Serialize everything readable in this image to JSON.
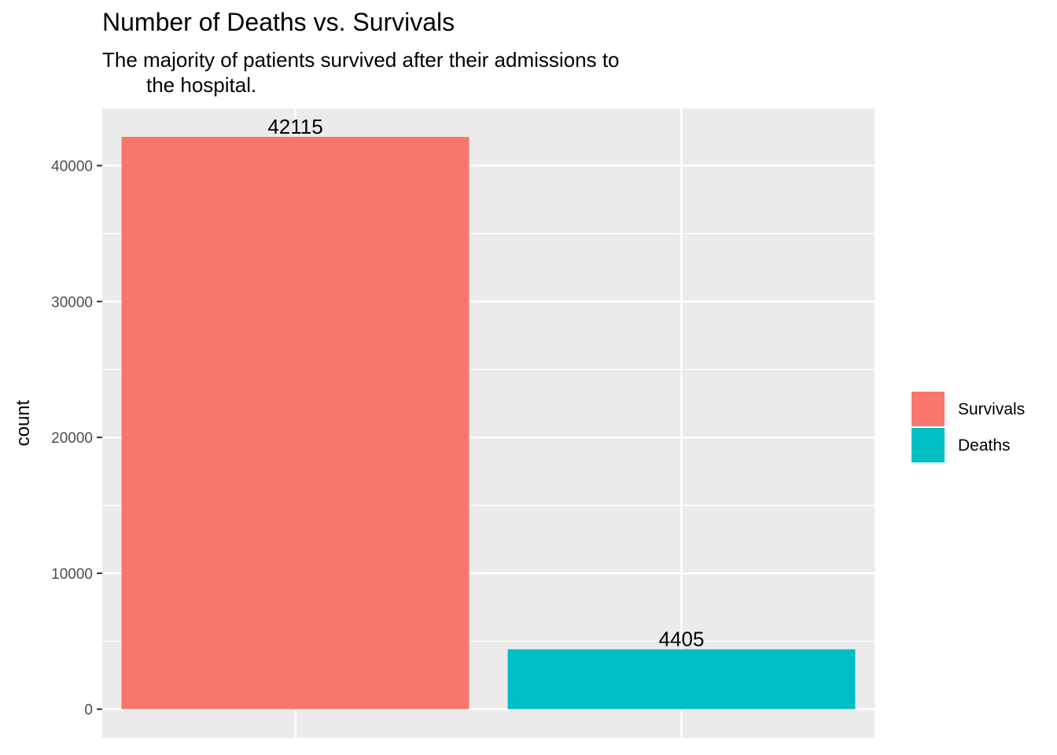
{
  "chart_data": {
    "type": "bar",
    "title": "Number of Deaths vs. Survivals",
    "subtitle_lines": [
      "The majority of patients survived after their admissions to",
      "the hospital."
    ],
    "xlabel": "",
    "ylabel": "count",
    "categories": [
      "Survivals",
      "Deaths"
    ],
    "values": [
      42115,
      4405
    ],
    "data_labels": [
      "42115",
      "4405"
    ],
    "colors": [
      "#F8766D",
      "#00BFC4"
    ],
    "ylim": [
      -2100,
      44200
    ],
    "yticks": [
      0,
      10000,
      20000,
      30000,
      40000
    ],
    "ytick_labels": [
      "0",
      "10000",
      "20000",
      "30000",
      "40000"
    ],
    "grid": true,
    "legend": {
      "placement": "right",
      "entries": [
        "Survivals",
        "Deaths"
      ]
    }
  }
}
